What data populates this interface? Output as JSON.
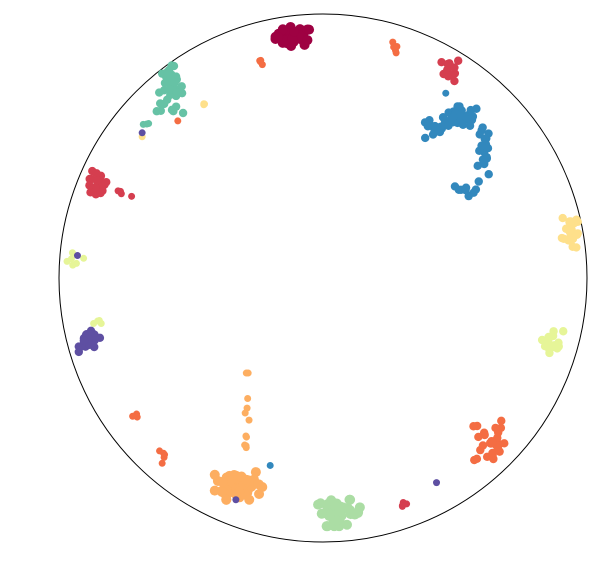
{
  "chart_data": {
    "type": "scatter",
    "title": "",
    "xlabel": "",
    "ylabel": "",
    "xlim": [
      -1,
      1
    ],
    "ylim": [
      -1,
      1
    ],
    "grid": false,
    "legend": false,
    "boundary": "unit-circle",
    "clusters": [
      {
        "color": "#9e0142",
        "center": [
          -0.11,
          0.915
        ],
        "spread": [
          0.035,
          0.018
        ],
        "count": 45,
        "size": "large"
      },
      {
        "color": "#d53e4f",
        "center": [
          0.485,
          0.79
        ],
        "spread": [
          0.018,
          0.022
        ],
        "count": 14,
        "size": "medium"
      },
      {
        "color": "#d53e4f",
        "center": [
          -0.86,
          0.355
        ],
        "spread": [
          0.022,
          0.025
        ],
        "count": 18,
        "size": "medium"
      },
      {
        "color": "#d53e4f",
        "center": [
          -0.765,
          0.315
        ],
        "spread": [
          0.02,
          0.01
        ],
        "count": 4,
        "size": "small"
      },
      {
        "color": "#d53e4f",
        "center": [
          0.305,
          -0.855
        ],
        "spread": [
          0.01,
          0.008
        ],
        "count": 4,
        "size": "small"
      },
      {
        "color": "#f46d43",
        "center": [
          0.265,
          0.86
        ],
        "spread": [
          0.01,
          0.02
        ],
        "count": 5,
        "size": "small"
      },
      {
        "color": "#f46d43",
        "center": [
          -0.235,
          0.815
        ],
        "spread": [
          0.005,
          0.01
        ],
        "count": 4,
        "size": "small"
      },
      {
        "color": "#f46d43",
        "center": [
          -0.55,
          0.595
        ],
        "spread": [
          0.003,
          0.003
        ],
        "count": 1,
        "size": "small"
      },
      {
        "color": "#f46d43",
        "center": [
          -0.695,
          -0.525
        ],
        "spread": [
          0.015,
          0.005
        ],
        "count": 3,
        "size": "small"
      },
      {
        "color": "#f46d43",
        "center": [
          -0.605,
          -0.685
        ],
        "spread": [
          0.012,
          0.015
        ],
        "count": 5,
        "size": "small"
      },
      {
        "color": "#f46d43",
        "center": [
          0.63,
          -0.615
        ],
        "spread": [
          0.03,
          0.05
        ],
        "count": 30,
        "size": "medium"
      },
      {
        "color": "#fdae61",
        "center": [
          -0.32,
          -0.78
        ],
        "spread": [
          0.045,
          0.03
        ],
        "count": 60,
        "size": "large"
      },
      {
        "color": "#fdae61",
        "center": [
          -0.29,
          -0.58
        ],
        "spread": [
          0.008,
          0.11
        ],
        "count": 12,
        "size": "small"
      },
      {
        "color": "#fee08b",
        "center": [
          0.935,
          0.18
        ],
        "spread": [
          0.015,
          0.04
        ],
        "count": 22,
        "size": "medium"
      },
      {
        "color": "#fee08b",
        "center": [
          -0.45,
          0.655
        ],
        "spread": [
          0.008,
          0.006
        ],
        "count": 3,
        "size": "small"
      },
      {
        "color": "#fee08b",
        "center": [
          -0.685,
          0.535
        ],
        "spread": [
          0.005,
          0.005
        ],
        "count": 1,
        "size": "small"
      },
      {
        "color": "#e6f598",
        "center": [
          0.87,
          -0.24
        ],
        "spread": [
          0.02,
          0.022
        ],
        "count": 20,
        "size": "medium"
      },
      {
        "color": "#e6f598",
        "center": [
          -0.94,
          0.07
        ],
        "spread": [
          0.02,
          0.015
        ],
        "count": 6,
        "size": "small"
      },
      {
        "color": "#e6f598",
        "center": [
          -0.845,
          -0.17
        ],
        "spread": [
          0.012,
          0.006
        ],
        "count": 4,
        "size": "small"
      },
      {
        "color": "#abdda4",
        "center": [
          0.06,
          -0.89
        ],
        "spread": [
          0.045,
          0.025
        ],
        "count": 40,
        "size": "large"
      },
      {
        "color": "#66c2a5",
        "center": [
          -0.58,
          0.715
        ],
        "spread": [
          0.025,
          0.045
        ],
        "count": 40,
        "size": "medium"
      },
      {
        "color": "#66c2a5",
        "center": [
          -0.665,
          0.585
        ],
        "spread": [
          0.01,
          0.005
        ],
        "count": 3,
        "size": "small"
      },
      {
        "color": "#3288bd",
        "center": [
          0.525,
          0.61
        ],
        "spread": [
          0.035,
          0.02
        ],
        "count": 45,
        "size": "medium"
      },
      {
        "color": "#3288bd",
        "center": [
          0.42,
          0.56
        ],
        "spread": [
          0.035,
          0.02
        ],
        "count": 14,
        "size": "medium"
      },
      {
        "color": "#3288bd",
        "center": [
          0.61,
          0.47
        ],
        "spread": [
          0.012,
          0.05
        ],
        "count": 18,
        "size": "medium"
      },
      {
        "color": "#3288bd",
        "center": [
          0.545,
          0.34
        ],
        "spread": [
          0.03,
          0.018
        ],
        "count": 10,
        "size": "medium"
      },
      {
        "color": "#3288bd",
        "center": [
          0.465,
          0.7
        ],
        "spread": [
          0.005,
          0.005
        ],
        "count": 1,
        "size": "small"
      },
      {
        "color": "#3288bd",
        "center": [
          -0.2,
          -0.71
        ],
        "spread": [
          0.003,
          0.003
        ],
        "count": 1,
        "size": "small"
      },
      {
        "color": "#5e4fa2",
        "center": [
          -0.885,
          -0.24
        ],
        "spread": [
          0.02,
          0.02
        ],
        "count": 30,
        "size": "medium"
      },
      {
        "color": "#5e4fa2",
        "center": [
          -0.93,
          0.085
        ],
        "spread": [
          0.004,
          0.004
        ],
        "count": 1,
        "size": "small"
      },
      {
        "color": "#5e4fa2",
        "center": [
          -0.685,
          0.55
        ],
        "spread": [
          0.004,
          0.004
        ],
        "count": 1,
        "size": "small"
      },
      {
        "color": "#5e4fa2",
        "center": [
          0.43,
          -0.775
        ],
        "spread": [
          0.004,
          0.004
        ],
        "count": 1,
        "size": "small"
      },
      {
        "color": "#5e4fa2",
        "center": [
          -0.33,
          -0.84
        ],
        "spread": [
          0.004,
          0.004
        ],
        "count": 1,
        "size": "small"
      }
    ]
  }
}
